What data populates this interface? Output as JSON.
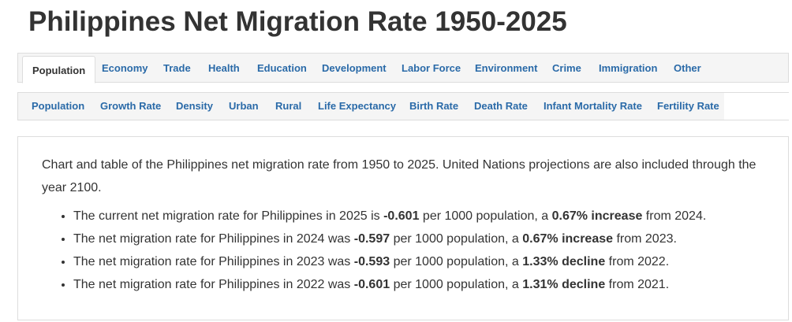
{
  "page": {
    "title": "Philippines Net Migration Rate 1950-2025"
  },
  "main_tabs": [
    {
      "label": "Population",
      "active": true
    },
    {
      "label": "Economy"
    },
    {
      "label": "Trade"
    },
    {
      "label": "Health"
    },
    {
      "label": "Education"
    },
    {
      "label": "Development"
    },
    {
      "label": "Labor Force"
    },
    {
      "label": "Environment"
    },
    {
      "label": "Crime"
    },
    {
      "label": "Immigration"
    },
    {
      "label": "Other"
    }
  ],
  "sub_tabs": [
    {
      "label": "Population"
    },
    {
      "label": "Growth Rate"
    },
    {
      "label": "Density"
    },
    {
      "label": "Urban"
    },
    {
      "label": "Rural"
    },
    {
      "label": "Life Expectancy"
    },
    {
      "label": "Birth Rate"
    },
    {
      "label": "Death Rate"
    },
    {
      "label": "Infant Mortality Rate"
    },
    {
      "label": "Fertility Rate"
    }
  ],
  "content": {
    "intro": "Chart and table of the Philippines net migration rate from 1950 to 2025. United Nations projections are also included through the year 2100.",
    "bullets": [
      {
        "prefix": "The current net migration rate for Philippines in 2025 is ",
        "value": "-0.601",
        "middle": " per 1000 population, a ",
        "change": "0.67% increase",
        "suffix": " from 2024."
      },
      {
        "prefix": "The net migration rate for Philippines in 2024 was ",
        "value": "-0.597",
        "middle": " per 1000 population, a ",
        "change": "0.67% increase",
        "suffix": " from 2023."
      },
      {
        "prefix": "The net migration rate for Philippines in 2023 was ",
        "value": "-0.593",
        "middle": " per 1000 population, a ",
        "change": "1.33% decline",
        "suffix": " from 2022."
      },
      {
        "prefix": "The net migration rate for Philippines in 2022 was ",
        "value": "-0.601",
        "middle": " per 1000 population, a ",
        "change": "1.31% decline",
        "suffix": " from 2021."
      }
    ]
  },
  "colors": {
    "link": "#2a6aa8",
    "text": "#333333",
    "tab_bg": "#f5f5f5",
    "border": "#dddddd"
  }
}
